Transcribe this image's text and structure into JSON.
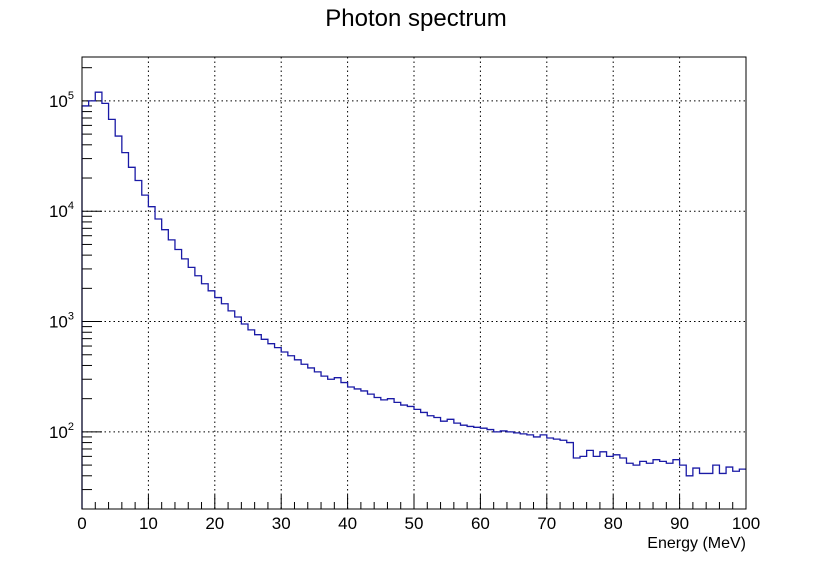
{
  "chart_data": {
    "type": "step",
    "title": "Photon spectrum",
    "xlabel": "Energy (MeV)",
    "ylabel": "",
    "xlim": [
      0,
      100
    ],
    "ylim": [
      20,
      250000
    ],
    "yscale": "log",
    "grid": true,
    "line_color": "#1a1aa6",
    "bin_width": 1,
    "x_ticks": [
      "0",
      "10",
      "20",
      "30",
      "40",
      "50",
      "60",
      "70",
      "80",
      "90",
      "100"
    ],
    "y_ticks": [
      {
        "base": "10",
        "exp": "2",
        "value": 100
      },
      {
        "base": "10",
        "exp": "3",
        "value": 1000
      },
      {
        "base": "10",
        "exp": "4",
        "value": 10000
      },
      {
        "base": "10",
        "exp": "5",
        "value": 100000
      }
    ],
    "values": [
      90000,
      100000,
      120000,
      95000,
      68000,
      48000,
      34000,
      25000,
      19000,
      14000,
      11000,
      8500,
      6800,
      5500,
      4500,
      3700,
      3100,
      2600,
      2200,
      1900,
      1650,
      1450,
      1250,
      1100,
      950,
      840,
      760,
      690,
      630,
      580,
      530,
      490,
      450,
      410,
      380,
      350,
      320,
      300,
      310,
      280,
      255,
      245,
      235,
      220,
      205,
      195,
      200,
      185,
      175,
      170,
      160,
      150,
      140,
      135,
      125,
      130,
      120,
      115,
      112,
      110,
      108,
      105,
      100,
      102,
      100,
      98,
      96,
      94,
      90,
      94,
      88,
      86,
      84,
      80,
      58,
      60,
      68,
      60,
      66,
      60,
      62,
      58,
      52,
      50,
      54,
      52,
      56,
      54,
      52,
      56,
      50,
      40,
      47,
      42,
      42,
      50,
      42,
      48,
      44,
      46
    ]
  }
}
